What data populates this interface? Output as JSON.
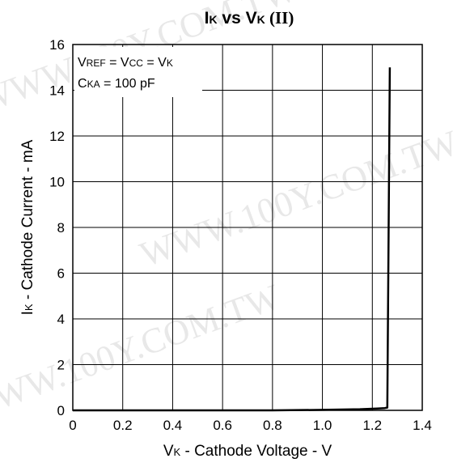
{
  "watermark": "WWW.100Y.COM.TW",
  "chart_data": {
    "type": "line",
    "title": {
      "part1_main": "I",
      "part1_sub": "K",
      "part2": " vs ",
      "part3_main": "V",
      "part3_sub": "K",
      "part4": " (II)"
    },
    "xlabel": {
      "main": "V",
      "sub": "K",
      "rest": " - Cathode Voltage - V"
    },
    "ylabel": {
      "main": "I",
      "sub": "K",
      "rest": " - Cathode Current - mA"
    },
    "xlim": [
      0,
      1.4
    ],
    "ylim": [
      0,
      16
    ],
    "x_ticks": [
      0,
      0.2,
      0.4,
      0.6,
      0.8,
      1.0,
      1.2,
      1.4
    ],
    "x_tick_labels": [
      "0",
      "0.2",
      "0.4",
      "0.6",
      "0.8",
      "1.0",
      "1.2",
      "1.4"
    ],
    "y_ticks": [
      0,
      2,
      4,
      6,
      8,
      10,
      12,
      14,
      16
    ],
    "y_tick_labels": [
      "0",
      "2",
      "4",
      "6",
      "8",
      "10",
      "12",
      "14",
      "16"
    ],
    "grid": true,
    "annotations": {
      "line1": {
        "a_main": "V",
        "a_sub": "REF",
        "eq1": " = ",
        "b_main": "V",
        "b_sub": "CC",
        "eq2": " = ",
        "c_main": "V",
        "c_sub": "K"
      },
      "line2": {
        "a_main": "C",
        "a_sub": "KA",
        "rest": " = 100 pF"
      }
    },
    "series": [
      {
        "x": [
          0.0,
          0.4,
          0.8,
          1.0,
          1.15,
          1.22,
          1.25,
          1.26,
          1.27
        ],
        "y": [
          0.0,
          0.0,
          0.0,
          0.02,
          0.05,
          0.08,
          0.1,
          0.12,
          15.0
        ],
        "color": "#000000"
      }
    ]
  }
}
